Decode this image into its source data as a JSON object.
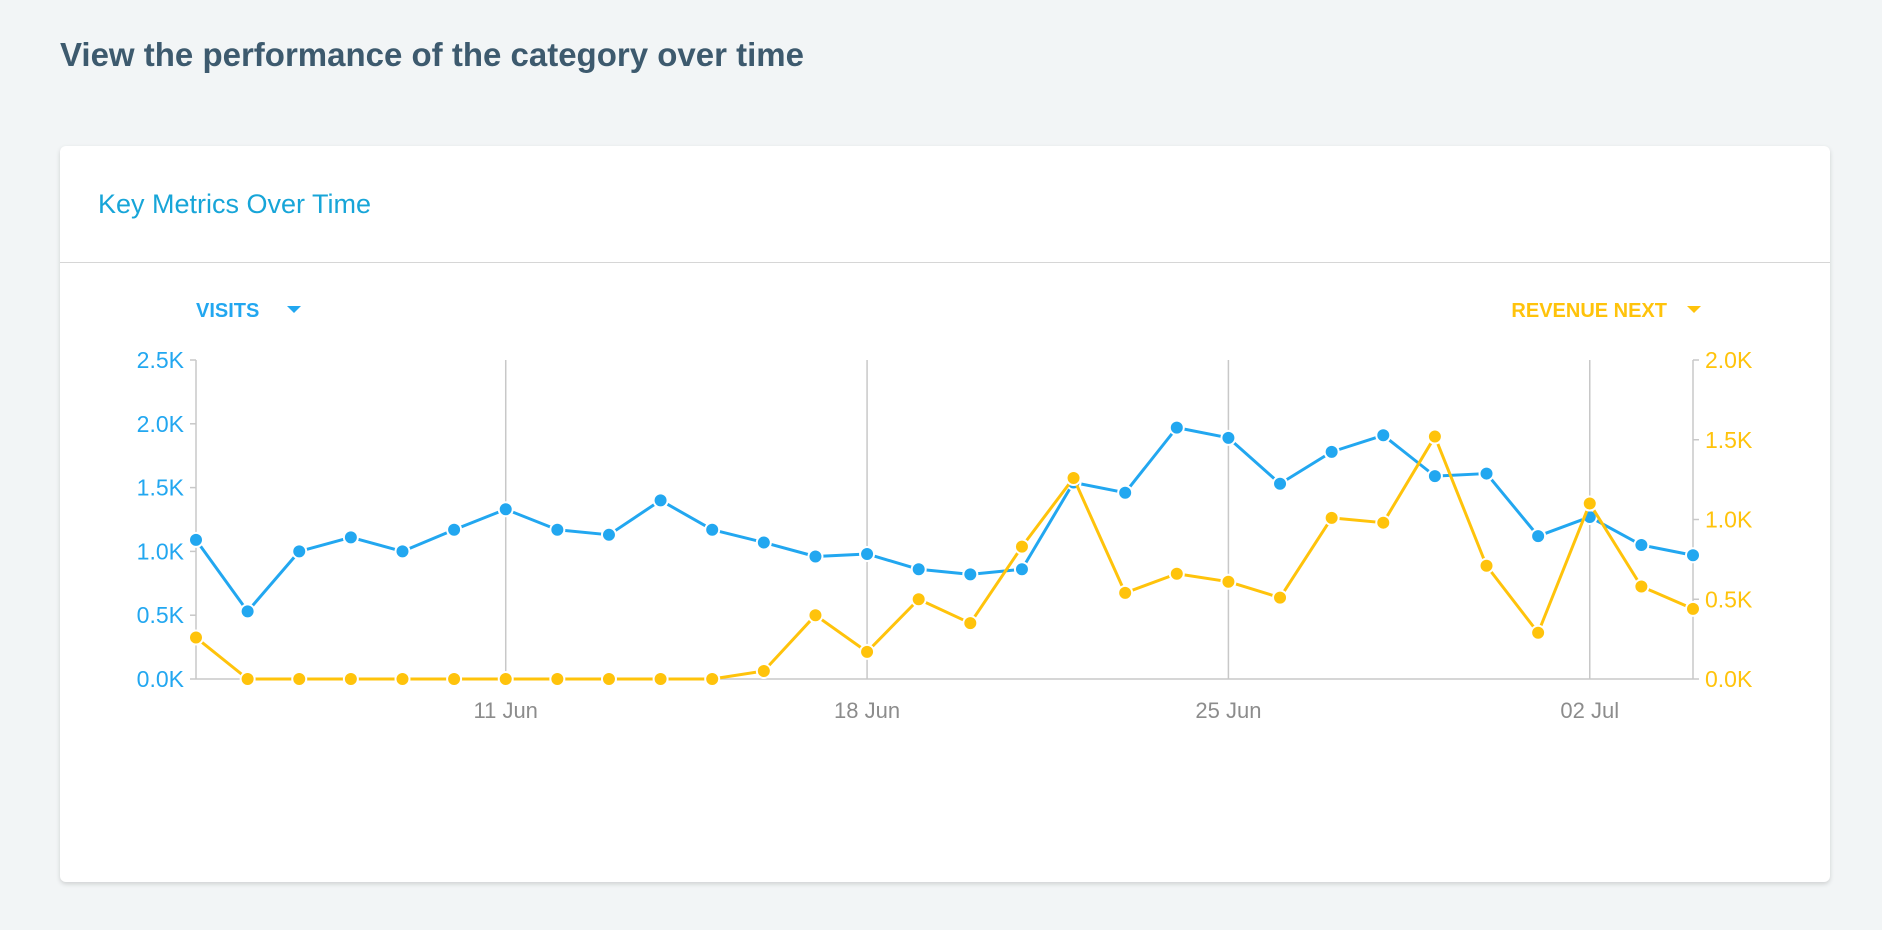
{
  "page_title": "View the performance of the category over time",
  "card_title": "Key Metrics Over Time",
  "colors": {
    "visits": "#22a7f0",
    "revenue": "#ffc30b",
    "grid": "#c8c8c8",
    "xlabel": "#8c8c8c"
  },
  "chart_data": {
    "type": "line",
    "title": "Key Metrics Over Time",
    "x": [
      "05 Jun",
      "06 Jun",
      "07 Jun",
      "08 Jun",
      "09 Jun",
      "10 Jun",
      "11 Jun",
      "12 Jun",
      "13 Jun",
      "14 Jun",
      "15 Jun",
      "16 Jun",
      "17 Jun",
      "18 Jun",
      "19 Jun",
      "20 Jun",
      "21 Jun",
      "22 Jun",
      "23 Jun",
      "24 Jun",
      "25 Jun",
      "26 Jun",
      "27 Jun",
      "28 Jun",
      "29 Jun",
      "30 Jun",
      "01 Jul",
      "02 Jul",
      "03 Jul",
      "04 Jul"
    ],
    "x_ticks": [
      "11 Jun",
      "18 Jun",
      "25 Jun",
      "02 Jul"
    ],
    "grid": "vertical at x ticks",
    "series": [
      {
        "name": "VISITS",
        "axis": "left",
        "values": [
          1090,
          530,
          1000,
          1110,
          1000,
          1170,
          1330,
          1170,
          1130,
          1400,
          1170,
          1070,
          960,
          980,
          860,
          820,
          860,
          1540,
          1460,
          1970,
          1890,
          1530,
          1780,
          1910,
          1590,
          1610,
          1120,
          1270,
          1050,
          970
        ]
      },
      {
        "name": "REVENUE NEXT",
        "axis": "right",
        "values": [
          260,
          0,
          0,
          0,
          0,
          0,
          0,
          0,
          0,
          0,
          0,
          50,
          400,
          170,
          500,
          350,
          830,
          1260,
          540,
          660,
          610,
          510,
          1010,
          980,
          1520,
          710,
          290,
          1100,
          580,
          440
        ]
      }
    ],
    "y_left": {
      "ylim": [
        0,
        2500
      ],
      "ticks": [
        "0.0K",
        "0.5K",
        "1.0K",
        "1.5K",
        "2.0K",
        "2.5K"
      ]
    },
    "y_right": {
      "ylim": [
        0,
        2000
      ],
      "ticks": [
        "0.0K",
        "0.5K",
        "1.0K",
        "1.5K",
        "2.0K"
      ]
    },
    "legend": {
      "left": "VISITS",
      "right": "REVENUE NEXT",
      "placement": "top"
    }
  }
}
